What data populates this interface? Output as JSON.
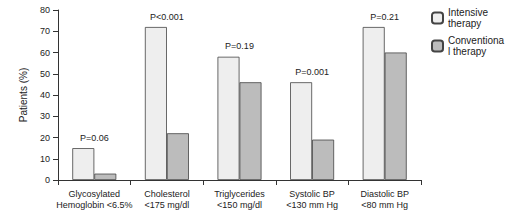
{
  "chart_data": {
    "type": "bar",
    "y_label": "Patients (%)",
    "categories": [
      "Glycosylated\nHemoglobin <6.5%",
      "Cholesterol\n<175 mg/dl",
      "Triglycerides\n<150 mg/dl",
      "Systolic BP\n<130 mm Hg",
      "Diastolic BP\n<80 mm Hg"
    ],
    "series": [
      {
        "name": "Intensive therapy",
        "color": "#eeeeee",
        "values": [
          15,
          72,
          58,
          46,
          72
        ]
      },
      {
        "name": "Conventional therapy",
        "color": "#bcbcbc",
        "values": [
          3,
          22,
          46,
          19,
          60
        ]
      }
    ],
    "annotations": [
      "P=0.06",
      "P<0.001",
      "P=0.19",
      "P=0.001",
      "P=0.21"
    ],
    "ylim": [
      0,
      80
    ],
    "yticks": [
      0,
      10,
      20,
      30,
      40,
      50,
      60,
      70,
      80
    ],
    "grid": false,
    "legend": "top-right"
  }
}
